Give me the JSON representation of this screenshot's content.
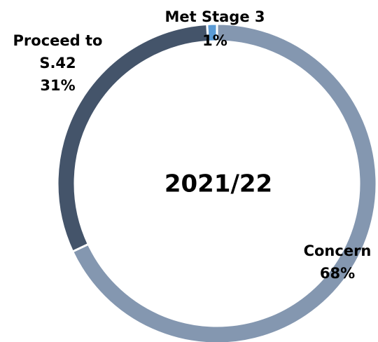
{
  "chart_data": {
    "type": "donut",
    "title": "2021/22",
    "categories": [
      "Concern",
      "Proceed to S.42",
      "Met Stage 3"
    ],
    "values": [
      68,
      31,
      1
    ],
    "value_labels": [
      "68%",
      "31%",
      "1%"
    ],
    "colors": [
      "#8497b0",
      "#44546a",
      "#5b9bd5"
    ]
  }
}
